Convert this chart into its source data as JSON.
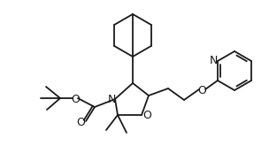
{
  "bg_color": "#ffffff",
  "line_color": "#1a1a1a",
  "line_width": 1.3,
  "font_size": 8.0,
  "figsize": [
    3.04,
    1.82
  ],
  "dpi": 100,
  "xlim": [
    0,
    304
  ],
  "ylim": [
    0,
    182
  ]
}
